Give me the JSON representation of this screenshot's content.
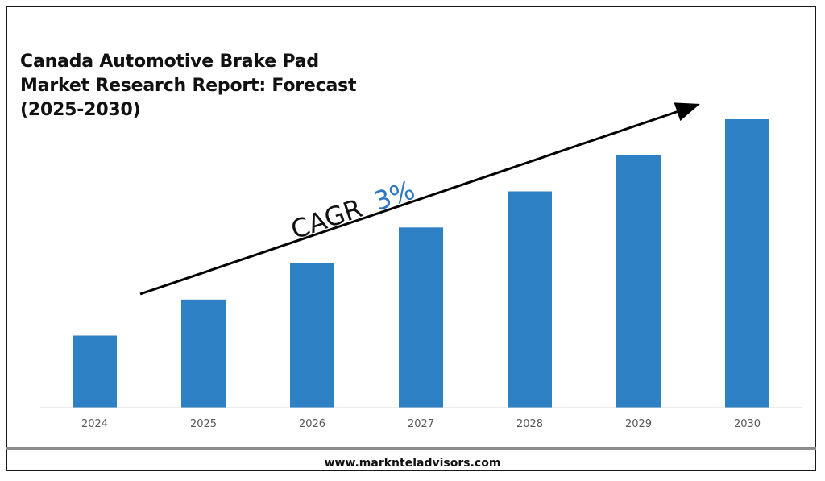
{
  "title_lines": [
    "Canada Automotive Brake Pad",
    "Market Research Report: Forecast",
    "(2025-2030)"
  ],
  "cagr": {
    "label": "CAGR",
    "value": "3%",
    "value_color": "#2e78c1",
    "label_color": "#111111"
  },
  "footer": {
    "url": "www.marknteladvisors.com"
  },
  "colors": {
    "bar": "#2f81c6",
    "axis": "#d9d9d9",
    "arrow": "#000000"
  },
  "chart_data": {
    "type": "bar",
    "categories": [
      "2024",
      "2025",
      "2026",
      "2027",
      "2028",
      "2029",
      "2030"
    ],
    "values": [
      20,
      30,
      40,
      50,
      60,
      70,
      80
    ],
    "ylim": [
      0,
      80
    ],
    "grid": false,
    "legend": "none",
    "annotation": "CAGR 3%"
  }
}
